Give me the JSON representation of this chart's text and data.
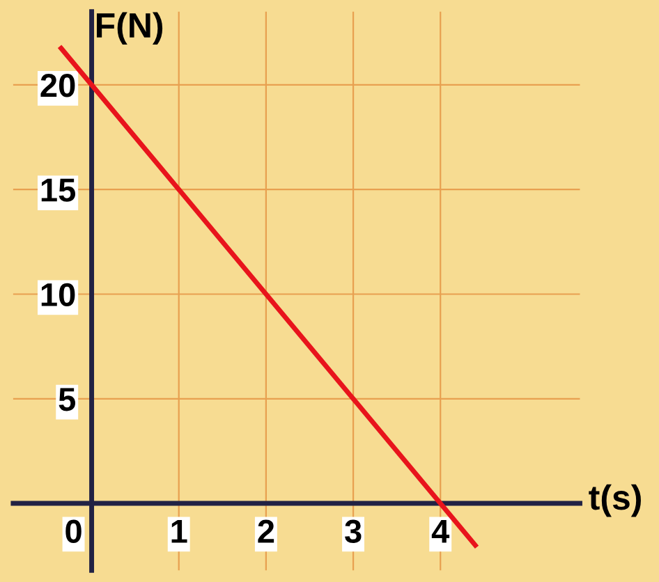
{
  "chart_data": {
    "type": "line",
    "xlabel": "t(s)",
    "ylabel": "F(N)",
    "x": [
      -0.35,
      4.4
    ],
    "series": [
      {
        "color": "#e8141c",
        "values": [
          21.75,
          -2.0
        ]
      }
    ],
    "xlim": [
      -0.9,
      5.6
    ],
    "ylim": [
      -3.2,
      23.5
    ],
    "xticks": [
      0,
      1,
      2,
      3,
      4
    ],
    "yticks": [
      5,
      10,
      15,
      20
    ],
    "grid": true,
    "marker": "none",
    "line_style": "solid"
  }
}
